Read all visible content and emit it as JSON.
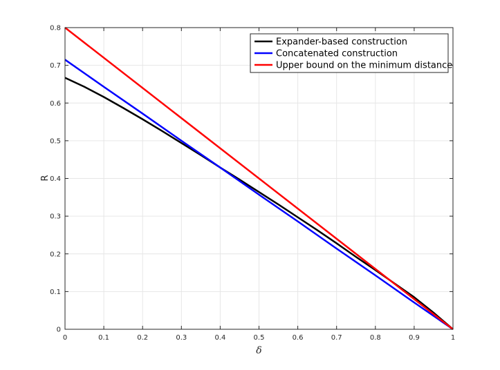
{
  "chart_data": {
    "type": "line",
    "xlabel": "δ",
    "ylabel": "R",
    "xlim": [
      0,
      1
    ],
    "ylim": [
      0,
      0.8
    ],
    "xticks": [
      0,
      0.1,
      0.2,
      0.3,
      0.4,
      0.5,
      0.6,
      0.7,
      0.8,
      0.9,
      1
    ],
    "xtick_labels": [
      "0",
      "0.1",
      "0.2",
      "0.3",
      "0.4",
      "0.5",
      "0.6",
      "0.7",
      "0.8",
      "0.9",
      "1"
    ],
    "yticks": [
      0,
      0.1,
      0.2,
      0.3,
      0.4,
      0.5,
      0.6,
      0.7,
      0.8
    ],
    "ytick_labels": [
      "0",
      "0.1",
      "0.2",
      "0.3",
      "0.4",
      "0.5",
      "0.6",
      "0.7",
      "0.8"
    ],
    "grid": true,
    "legend_position": "top-right",
    "series": [
      {
        "name": "Expander-based construction",
        "color": "#000000",
        "x": [
          0,
          0.05,
          0.1,
          0.15,
          0.2,
          0.25,
          0.3,
          0.35,
          0.4,
          0.45,
          0.5,
          0.55,
          0.6,
          0.65,
          0.7,
          0.75,
          0.8,
          0.85,
          0.9,
          0.95,
          1
        ],
        "y": [
          0.667,
          0.643,
          0.616,
          0.587,
          0.557,
          0.526,
          0.494,
          0.462,
          0.429,
          0.397,
          0.364,
          0.331,
          0.297,
          0.263,
          0.228,
          0.192,
          0.157,
          0.121,
          0.085,
          0.044,
          0
        ]
      },
      {
        "name": "Concatenated construction",
        "color": "#0000ff",
        "x": [
          0,
          0.1,
          0.2,
          0.3,
          0.4,
          0.5,
          0.6,
          0.7,
          0.8,
          0.9,
          1
        ],
        "y": [
          0.715,
          0.643,
          0.572,
          0.5,
          0.429,
          0.357,
          0.286,
          0.214,
          0.143,
          0.071,
          0
        ]
      },
      {
        "name": "Upper bound on the minimum distance",
        "color": "#ff0000",
        "x": [
          0,
          0.5,
          1
        ],
        "y": [
          0.8,
          0.4,
          0
        ]
      }
    ]
  }
}
